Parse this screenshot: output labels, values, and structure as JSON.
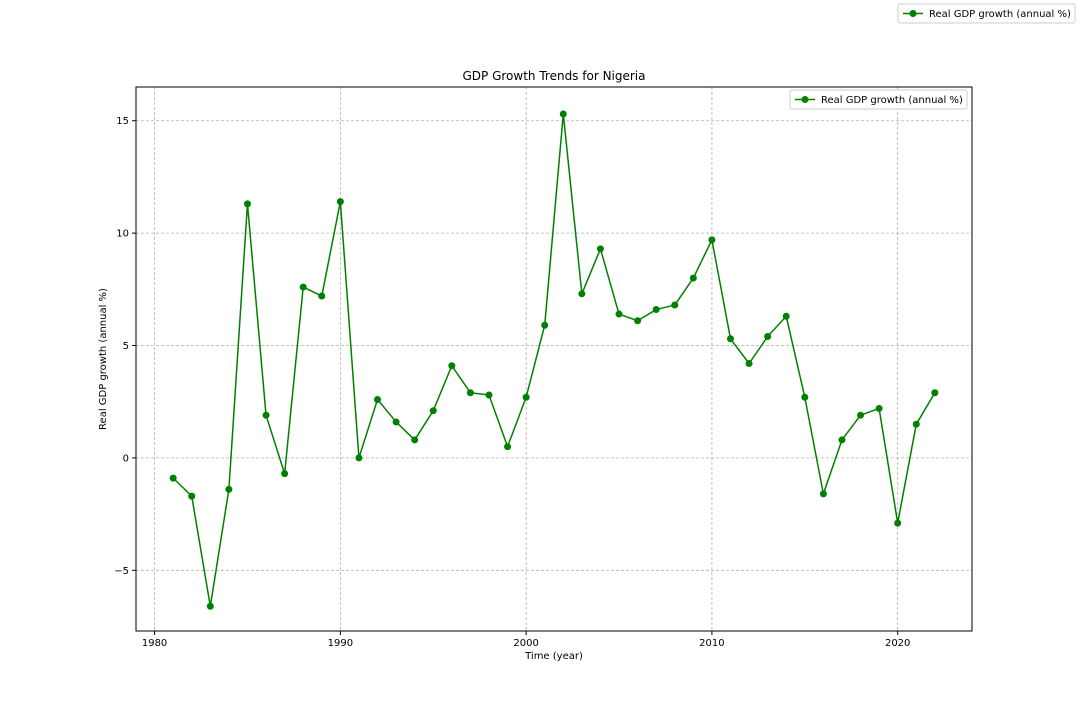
{
  "chart_data": {
    "type": "line",
    "title": "GDP Growth Trends for Nigeria",
    "xlabel": "Time (year)",
    "ylabel": "Real GDP growth (annual %)",
    "xlim": [
      1979,
      2024
    ],
    "ylim": [
      -7.7,
      16.5
    ],
    "x_ticks": [
      1980,
      1990,
      2000,
      2010,
      2020
    ],
    "y_ticks": [
      -5,
      0,
      5,
      10,
      15
    ],
    "y_tick_labels": [
      "−5",
      "0",
      "5",
      "10",
      "15"
    ],
    "grid": true,
    "legend": [
      "Real GDP growth (annual %)"
    ],
    "legend_placement": "upper right",
    "figure_legend_placement": "top-right of figure",
    "series": [
      {
        "name": "Real GDP growth (annual %)",
        "color": "#008000",
        "x": [
          1981,
          1982,
          1983,
          1984,
          1985,
          1986,
          1987,
          1988,
          1989,
          1990,
          1991,
          1992,
          1993,
          1994,
          1995,
          1996,
          1997,
          1998,
          1999,
          2000,
          2001,
          2002,
          2003,
          2004,
          2005,
          2006,
          2007,
          2008,
          2009,
          2010,
          2011,
          2012,
          2013,
          2014,
          2015,
          2016,
          2017,
          2018,
          2019,
          2020,
          2021,
          2022
        ],
        "values": [
          -0.9,
          -1.7,
          -6.6,
          -1.4,
          11.3,
          1.9,
          -0.7,
          7.6,
          7.2,
          11.4,
          0.0,
          2.6,
          1.6,
          0.8,
          2.1,
          4.1,
          2.9,
          2.8,
          0.5,
          2.7,
          5.9,
          15.3,
          7.3,
          9.3,
          6.4,
          6.1,
          6.6,
          6.8,
          8.0,
          9.7,
          5.3,
          4.2,
          5.4,
          6.3,
          2.7,
          -1.6,
          0.8,
          1.9,
          2.2,
          -2.9,
          1.5,
          2.9
        ]
      }
    ]
  }
}
